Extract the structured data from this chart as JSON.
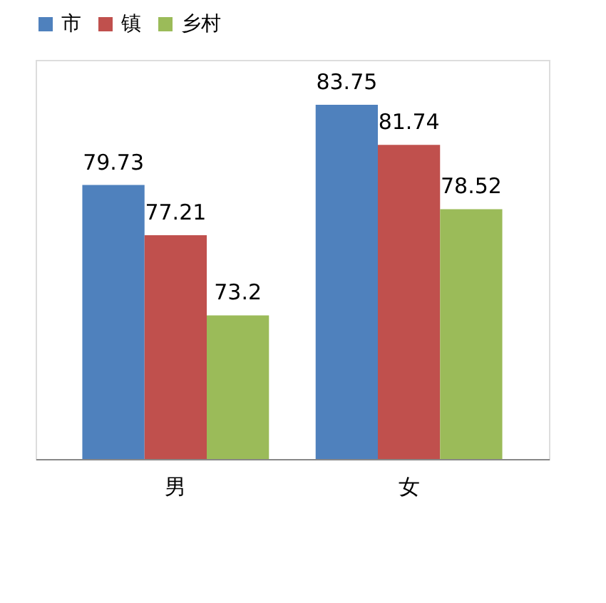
{
  "chart_data": {
    "type": "bar",
    "categories": [
      "男",
      "女"
    ],
    "series": [
      {
        "name": "市",
        "color": "#4f81bd",
        "values": [
          79.73,
          83.75
        ]
      },
      {
        "name": "镇",
        "color": "#c0504d",
        "values": [
          77.21,
          81.74
        ]
      },
      {
        "name": "乡村",
        "color": "#9bbb59",
        "values": [
          73.2,
          78.52
        ]
      }
    ],
    "ylim": [
      66,
      86
    ],
    "tick_labels": "x",
    "data_labels": true,
    "legend": "top",
    "grid": false
  }
}
